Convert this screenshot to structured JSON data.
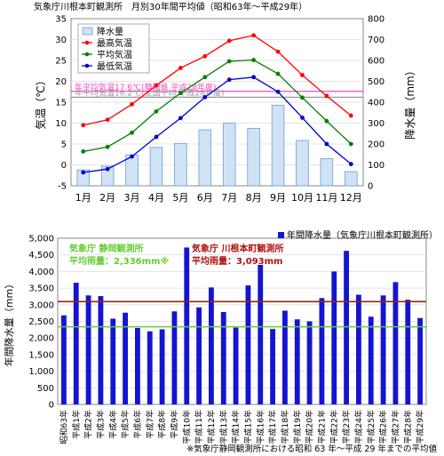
{
  "chart_data": [
    {
      "type": "bar+line",
      "title": "気象庁川根本町観測所　月別30年間平均値（昭和63年～平成29年）",
      "ylabel_left": "気温（℃）",
      "ylabel_right": "降水量（mm）",
      "ylim_left": [
        -5,
        35
      ],
      "ylim_right": [
        0,
        800
      ],
      "yticks_left": [
        "-5",
        "0",
        "5",
        "10",
        "15",
        "20",
        "25",
        "30",
        "35"
      ],
      "yticks_right": [
        "0",
        "100",
        "200",
        "300",
        "400",
        "500",
        "600",
        "700",
        "800"
      ],
      "categories": [
        "1月",
        "2月",
        "3月",
        "4月",
        "5月",
        "6月",
        "7月",
        "8月",
        "9月",
        "10月",
        "11月",
        "12月"
      ],
      "precip": {
        "name": "降水量",
        "color": "#cfe3f5",
        "values": [
          76,
          94,
          148,
          184,
          203,
          268,
          300,
          275,
          386,
          217,
          130,
          68
        ]
      },
      "temp_lines": [
        {
          "name": "最高気温",
          "color": "#ff0000",
          "values": [
            9.5,
            10.8,
            14.5,
            19.0,
            23.2,
            26.0,
            29.7,
            31.0,
            27.1,
            21.5,
            16.5,
            11.8
          ]
        },
        {
          "name": "平均気温",
          "color": "#008000",
          "values": [
            3.2,
            4.3,
            7.7,
            12.8,
            17.2,
            21.0,
            24.8,
            25.1,
            21.8,
            16.1,
            10.5,
            5.0
          ]
        },
        {
          "name": "最低気温",
          "color": "#0000cc",
          "values": [
            -1.8,
            -1.0,
            2.0,
            6.7,
            11.2,
            16.2,
            20.4,
            21.0,
            17.5,
            11.3,
            5.0,
            0.2
          ]
        }
      ],
      "ref_lines": [
        {
          "label": "年平均気温17.6℃(静岡県 平成28年度)",
          "value": 17.6,
          "color": "#ff44cc"
        },
        {
          "label": "年平均気温16.2℃(全国平均 平成28年度)",
          "value": 16.2,
          "color": "#9a9a9a"
        }
      ]
    },
    {
      "type": "bar",
      "ylabel": "年間降水量（mm）",
      "ylim": [
        0,
        5000
      ],
      "yticks": [
        "0",
        "500",
        "1,000",
        "1,500",
        "2,000",
        "2,500",
        "3,000",
        "3,500",
        "4,000",
        "4,500",
        "5,000"
      ],
      "series_name": "年間降水量（気象庁川根本町観測所）",
      "bar_color": "#1414d2",
      "categories": [
        "昭和63年",
        "平成1年",
        "平成2年",
        "平成3年",
        "平成4年",
        "平成5年",
        "平成6年",
        "平成7年",
        "平成8年",
        "平成9年",
        "平成10年",
        "平成11年",
        "平成12年",
        "平成13年",
        "平成14年",
        "平成15年",
        "平成16年",
        "平成17年",
        "平成18年",
        "平成19年",
        "平成20年",
        "平成21年",
        "平成22年",
        "平成23年",
        "平成24年",
        "平成25年",
        "平成26年",
        "平成27年",
        "平成28年",
        "平成29年"
      ],
      "values": [
        2680,
        3660,
        3280,
        3260,
        2580,
        2760,
        2300,
        2200,
        2260,
        2800,
        4720,
        2920,
        3520,
        2780,
        2310,
        3580,
        4200,
        2270,
        2820,
        2560,
        2500,
        3200,
        4000,
        4620,
        3300,
        2640,
        3280,
        3680,
        3150,
        2600
      ],
      "ref_lines": [
        {
          "title": "気象庁 静岡観測所",
          "label": "平均雨量：2,336mm※",
          "value": 2336,
          "color": "#66cc33"
        },
        {
          "title": "気象庁 川根本町観測所",
          "label": "平均雨量：3,093mm",
          "value": 3093,
          "color": "#8b2a10"
        }
      ],
      "footnote": "※気象庁静岡観測所における昭和 63 年～平成 29 年までの平均値"
    }
  ]
}
